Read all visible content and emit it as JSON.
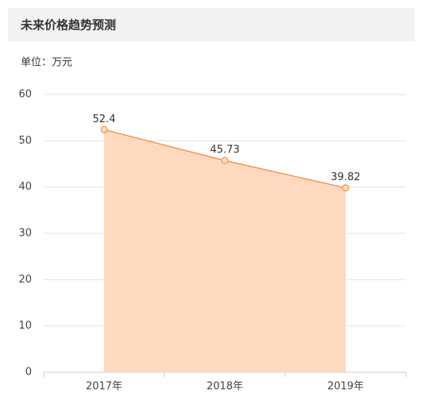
{
  "chart_data": {
    "type": "area",
    "title": "未来价格趋势预测",
    "unit": "单位：万元",
    "categories": [
      "2017年",
      "2018年",
      "2019年"
    ],
    "values": [
      52.4,
      45.73,
      39.82
    ],
    "color": "#f4852c",
    "fill_color": "#fdd9c0",
    "ylim": [
      0,
      60
    ],
    "yticks": [
      0,
      10,
      20,
      30,
      40,
      50,
      60
    ],
    "grid": true
  }
}
